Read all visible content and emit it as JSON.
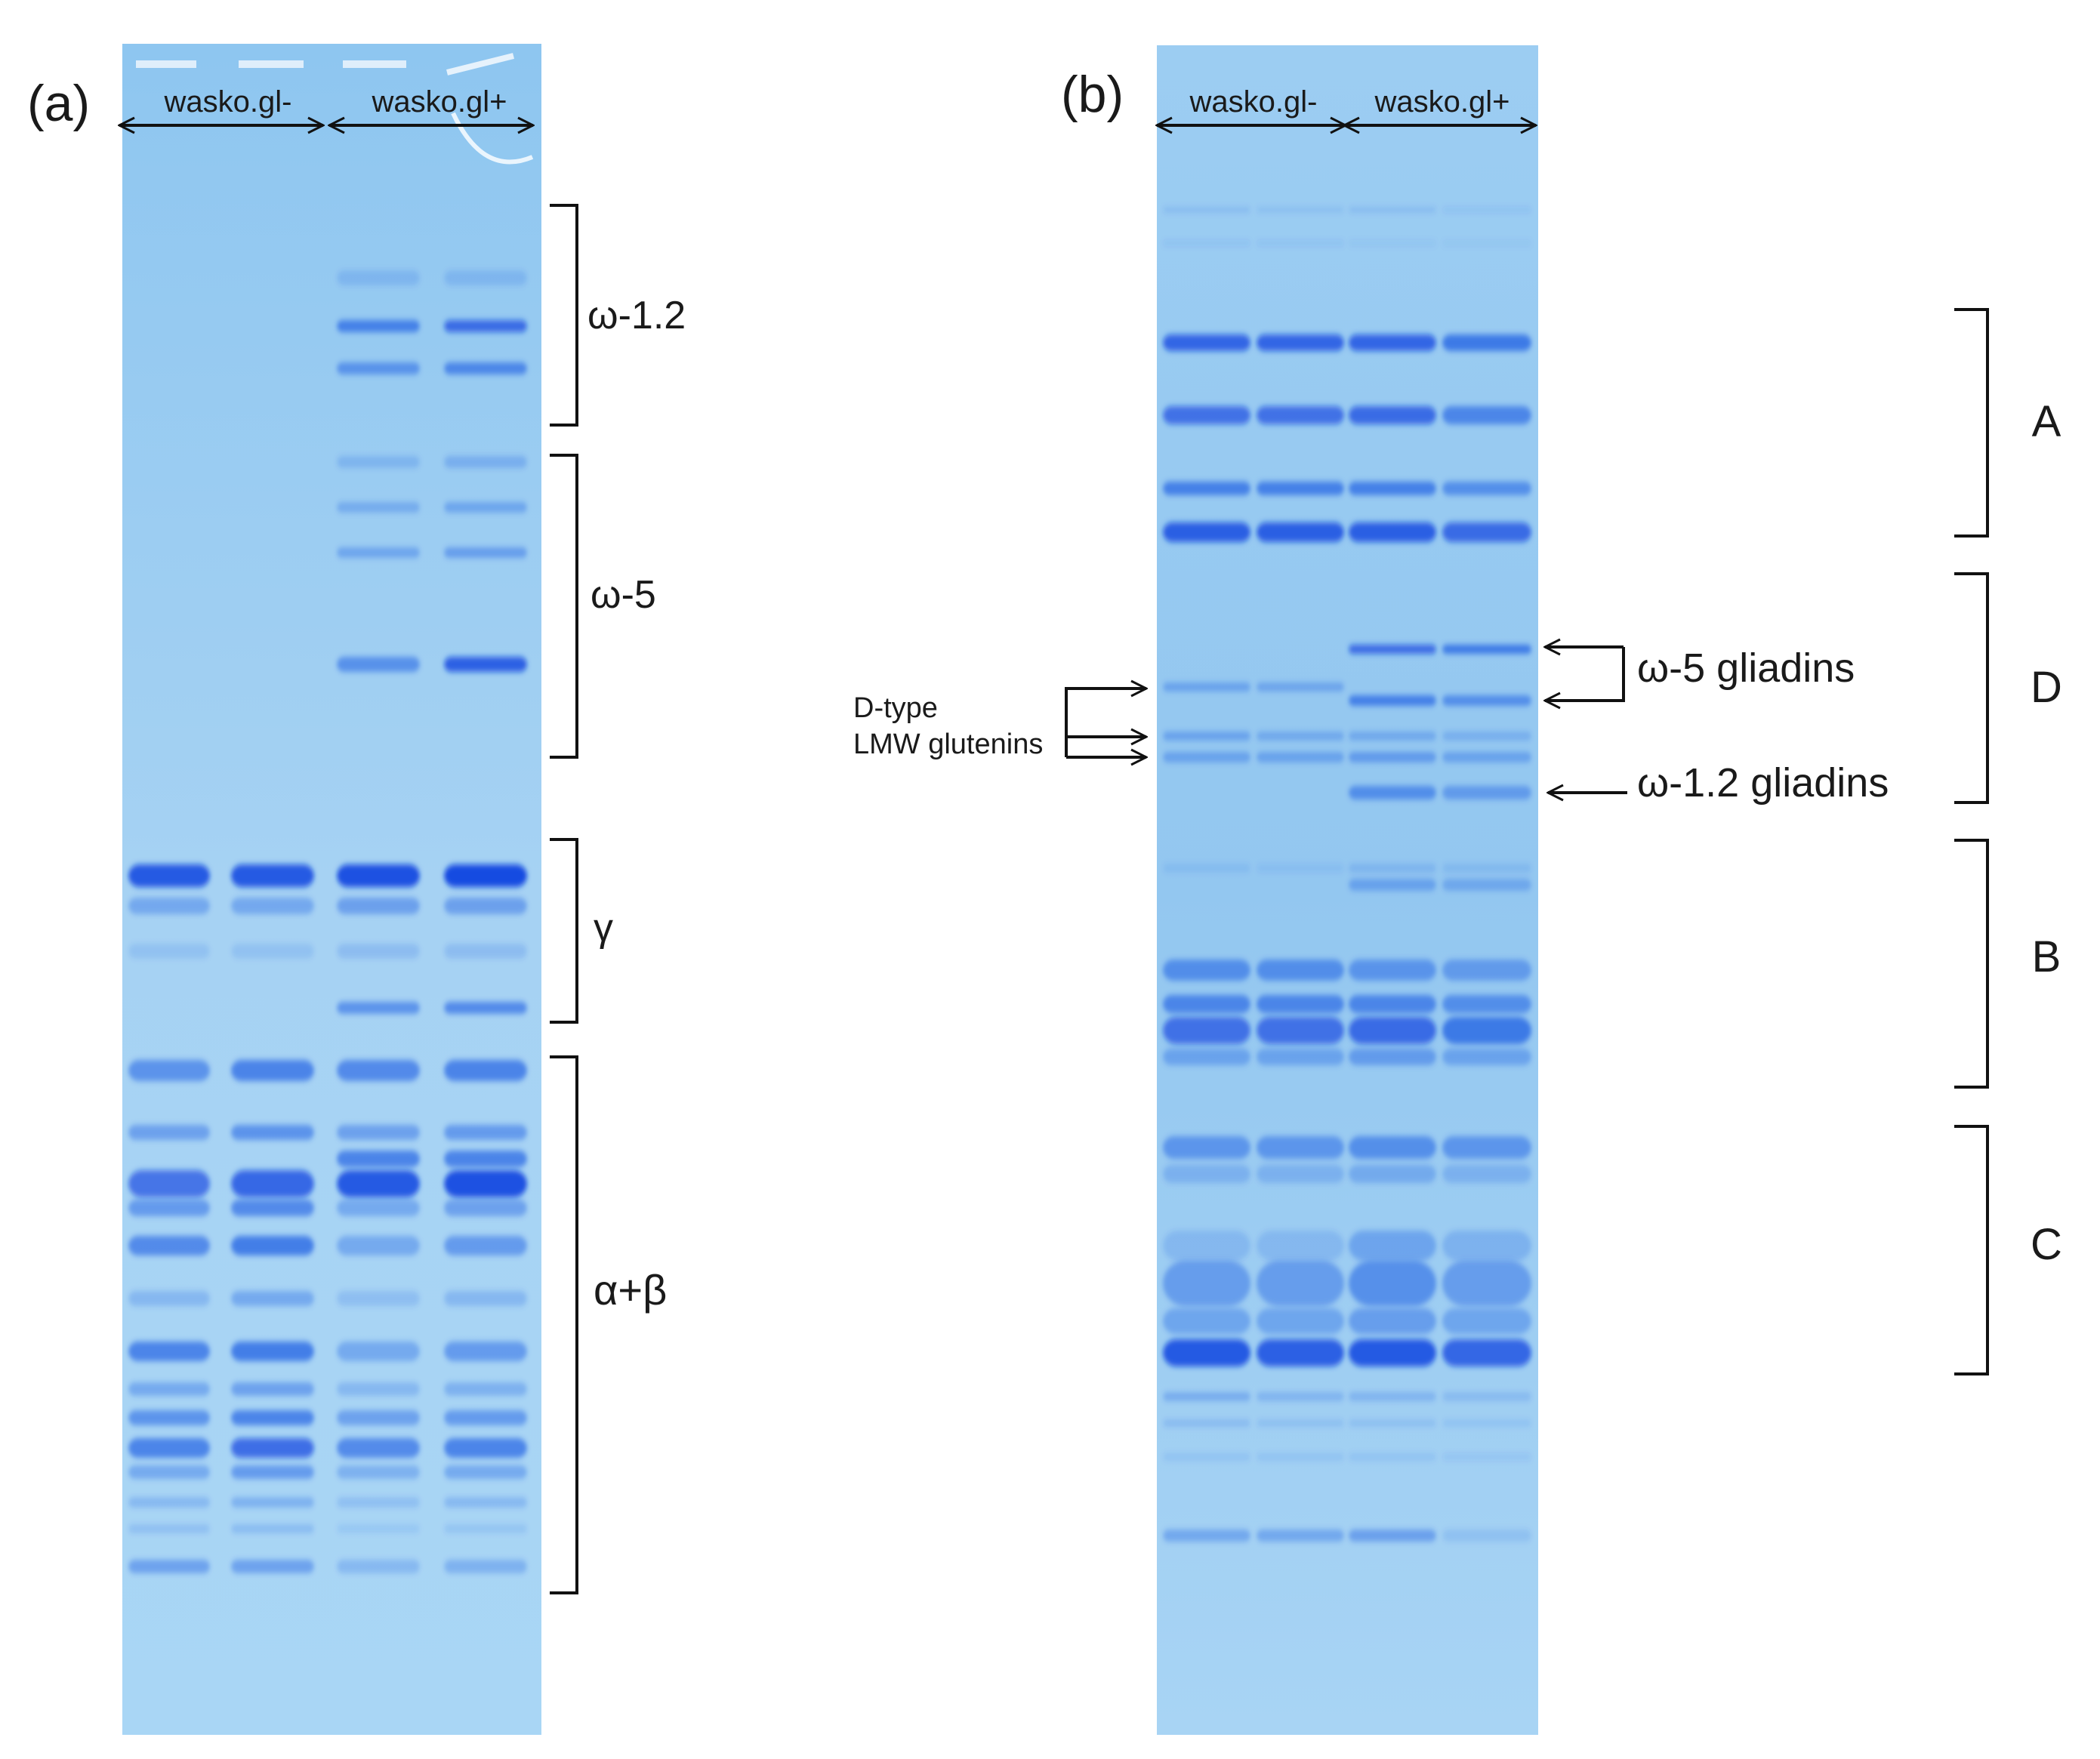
{
  "figure": {
    "panels": [
      {
        "id": "a",
        "label": "(a)",
        "groups": [
          {
            "label": "wasko.gl-",
            "lanes": 2
          },
          {
            "label": "wasko.gl+",
            "lanes": 2
          }
        ],
        "fractions": [
          {
            "id": "omega12",
            "label": "ω-1.2"
          },
          {
            "id": "omega5",
            "label": "ω-5"
          },
          {
            "id": "gamma",
            "label": "γ"
          },
          {
            "id": "alphabeta",
            "label": "α+β"
          }
        ]
      },
      {
        "id": "b",
        "label": "(b)",
        "groups": [
          {
            "label": "wasko.gl-",
            "lanes": 2
          },
          {
            "label": "wasko.gl+",
            "lanes": 2
          }
        ],
        "regions": [
          {
            "id": "A",
            "label": "A"
          },
          {
            "id": "D",
            "label": "D"
          },
          {
            "id": "B",
            "label": "B"
          },
          {
            "id": "C",
            "label": "C"
          }
        ],
        "annotations": {
          "d_type_line1": "D-type",
          "d_type_line2": "LMW glutenins",
          "omega5": "ω-5 gliadins",
          "omega12": "ω-1.2 gliadins"
        }
      }
    ]
  },
  "colors": {
    "gel_background": "#a3d1f2",
    "band": "#0a44e0",
    "ink": "#111111"
  }
}
